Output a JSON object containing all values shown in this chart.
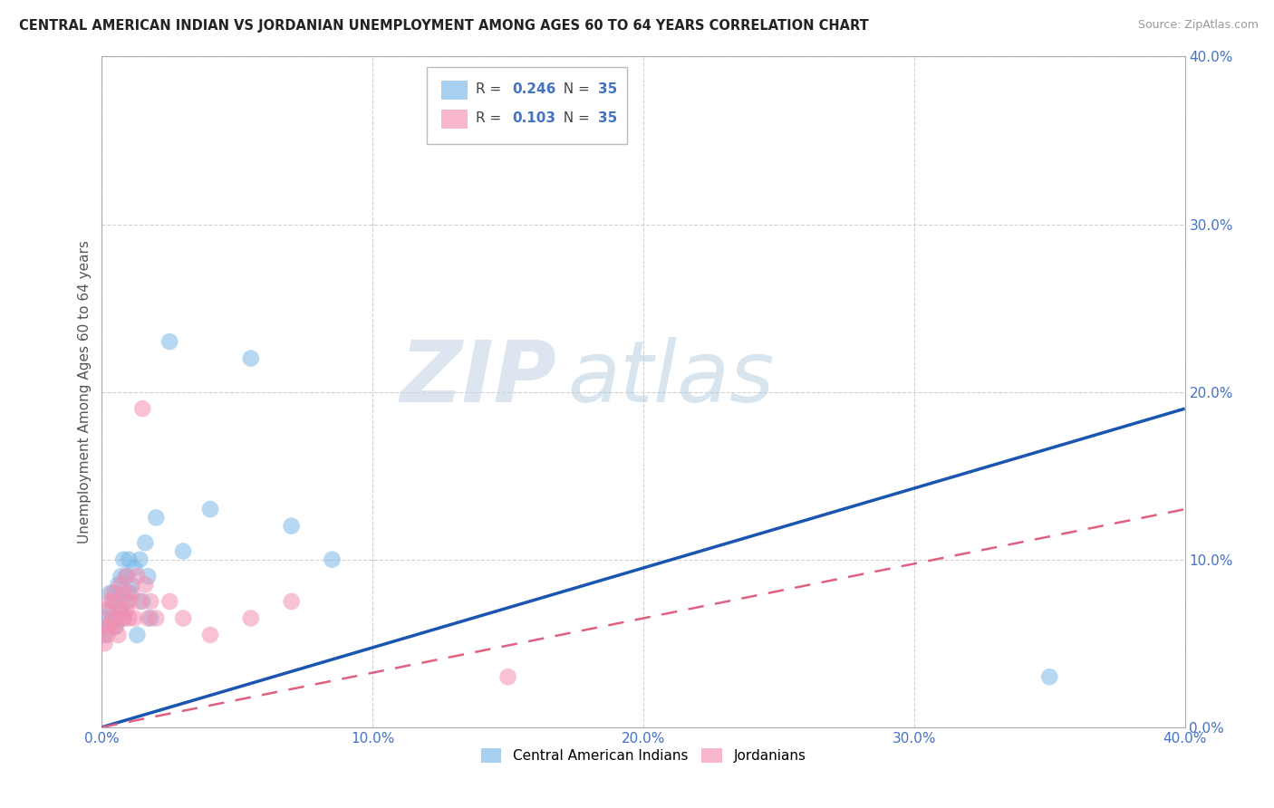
{
  "title": "CENTRAL AMERICAN INDIAN VS JORDANIAN UNEMPLOYMENT AMONG AGES 60 TO 64 YEARS CORRELATION CHART",
  "source": "Source: ZipAtlas.com",
  "xlim": [
    0.0,
    0.4
  ],
  "ylim": [
    0.0,
    0.4
  ],
  "r_blue": 0.246,
  "n_blue": 35,
  "r_pink": 0.103,
  "n_pink": 35,
  "blue_color": "#7ab8e8",
  "pink_color": "#f48fb1",
  "line_blue": "#1a55b0",
  "line_pink": "#e06080",
  "watermark_zip": "ZIP",
  "watermark_atlas": "atlas",
  "legend_label_blue": "Central American Indians",
  "legend_label_pink": "Jordanians",
  "ylabel": "Unemployment Among Ages 60 to 64 years",
  "blue_line_start_y": 0.0,
  "blue_line_end_y": 0.19,
  "pink_line_start_y": 0.0,
  "pink_line_end_y": 0.13,
  "blue_x": [
    0.001,
    0.001,
    0.002,
    0.003,
    0.003,
    0.004,
    0.004,
    0.005,
    0.005,
    0.006,
    0.006,
    0.007,
    0.007,
    0.008,
    0.008,
    0.009,
    0.009,
    0.01,
    0.01,
    0.011,
    0.012,
    0.013,
    0.014,
    0.015,
    0.016,
    0.017,
    0.018,
    0.02,
    0.025,
    0.03,
    0.04,
    0.055,
    0.07,
    0.085,
    0.35
  ],
  "blue_y": [
    0.055,
    0.065,
    0.06,
    0.07,
    0.08,
    0.065,
    0.075,
    0.06,
    0.08,
    0.065,
    0.085,
    0.07,
    0.09,
    0.065,
    0.1,
    0.075,
    0.09,
    0.08,
    0.1,
    0.085,
    0.095,
    0.055,
    0.1,
    0.075,
    0.11,
    0.09,
    0.065,
    0.125,
    0.23,
    0.105,
    0.13,
    0.22,
    0.12,
    0.1,
    0.03
  ],
  "pink_x": [
    0.001,
    0.001,
    0.002,
    0.002,
    0.003,
    0.003,
    0.004,
    0.004,
    0.005,
    0.005,
    0.006,
    0.006,
    0.007,
    0.007,
    0.008,
    0.008,
    0.009,
    0.009,
    0.01,
    0.01,
    0.011,
    0.012,
    0.013,
    0.014,
    0.015,
    0.016,
    0.017,
    0.018,
    0.02,
    0.025,
    0.03,
    0.04,
    0.055,
    0.07,
    0.15
  ],
  "pink_y": [
    0.05,
    0.06,
    0.055,
    0.07,
    0.06,
    0.075,
    0.065,
    0.08,
    0.06,
    0.075,
    0.055,
    0.065,
    0.07,
    0.085,
    0.065,
    0.08,
    0.07,
    0.09,
    0.065,
    0.075,
    0.08,
    0.065,
    0.09,
    0.075,
    0.19,
    0.085,
    0.065,
    0.075,
    0.065,
    0.075,
    0.065,
    0.055,
    0.065,
    0.075,
    0.03
  ]
}
